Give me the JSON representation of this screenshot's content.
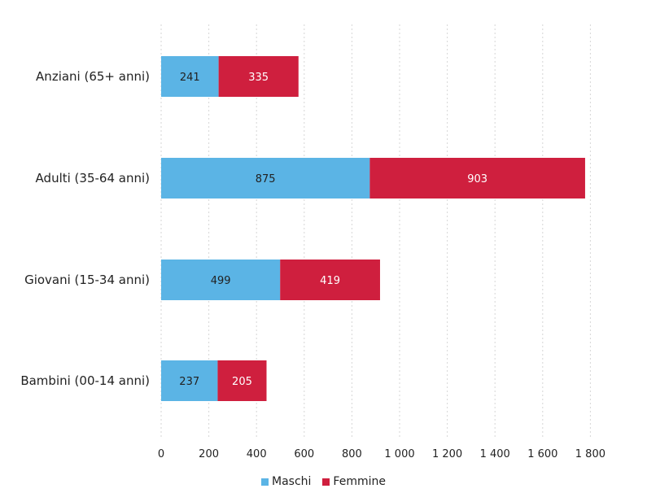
{
  "chart_data": {
    "type": "bar",
    "orientation": "horizontal",
    "stacked": true,
    "categories": [
      "Anziani (65+ anni)",
      "Adulti (35-64 anni)",
      "Giovani (15-34 anni)",
      "Bambini (00-14 anni)"
    ],
    "series": [
      {
        "name": "Maschi",
        "color": "#5bb4e5",
        "values": [
          241,
          875,
          499,
          237
        ]
      },
      {
        "name": "Femmine",
        "color": "#cf1f3e",
        "values": [
          335,
          903,
          419,
          205
        ]
      }
    ],
    "xlim": [
      0,
      2000
    ],
    "xticks": [
      0,
      200,
      400,
      600,
      800,
      1000,
      1200,
      1400,
      1600,
      1800
    ],
    "xtick_labels": [
      "0",
      "200",
      "400",
      "600",
      "800",
      "1 000",
      "1 200",
      "1 400",
      "1 600",
      "1 800"
    ],
    "grid": true,
    "legend_position": "bottom"
  }
}
